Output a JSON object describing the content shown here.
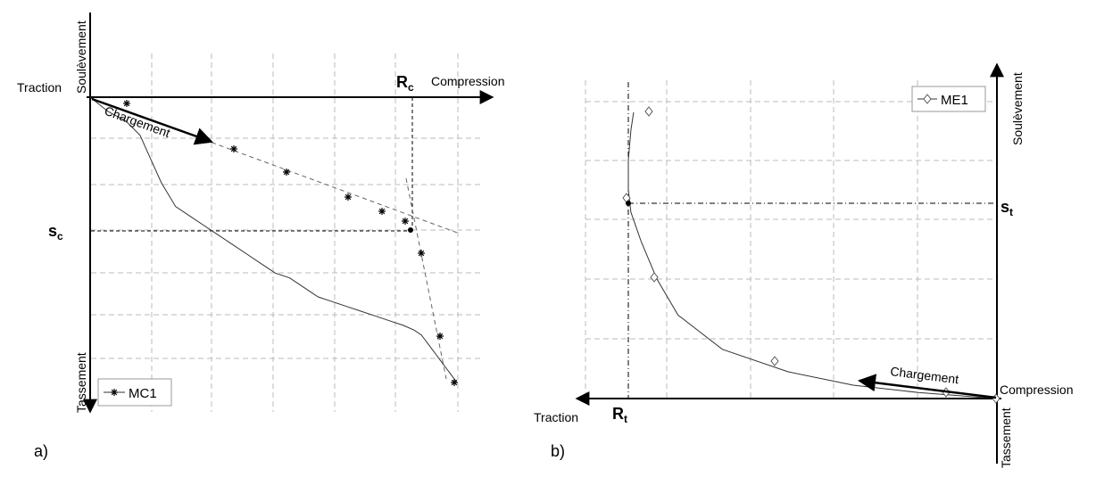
{
  "chart_data": [
    {
      "panel_label": "a)",
      "type": "line",
      "axes": {
        "left": "Traction",
        "right": "Compression",
        "up": "Soulèvement",
        "down": "Tassement"
      },
      "legend": {
        "name": "MC1",
        "marker": "star"
      },
      "marker_label": "R",
      "marker_label_sub": "c",
      "settlement_label": "s",
      "settlement_label_sub": "c",
      "arrow_label": "Chargement",
      "grid": true,
      "series": [
        {
          "name": "MC1",
          "x": [
            0,
            5,
            10,
            14,
            17,
            20,
            24,
            28,
            32,
            36,
            40,
            44,
            48,
            52,
            56,
            60,
            64,
            68,
            72,
            76,
            80,
            84,
            88,
            91,
            93,
            94,
            95,
            96,
            97,
            98,
            99,
            100,
            101,
            102,
            103
          ],
          "y": [
            0,
            3,
            5,
            8,
            13,
            18,
            23,
            25,
            27,
            29,
            31,
            33,
            35,
            37,
            38,
            40,
            42,
            43,
            44,
            45,
            46,
            47,
            48,
            49,
            50,
            51,
            52,
            53,
            54,
            55,
            56,
            57,
            58,
            59,
            60
          ]
        }
      ]
    },
    {
      "panel_label": "b)",
      "type": "line",
      "axes": {
        "left": "Traction",
        "right": "Compression",
        "up": "Soulèvement",
        "down": "Tassement"
      },
      "legend": {
        "name": "ME1",
        "marker": "diamond"
      },
      "marker_label": "R",
      "marker_label_sub": "t",
      "settlement_label": "s",
      "settlement_label_sub": "t",
      "arrow_label": "Chargement",
      "grid": true,
      "series": [
        {
          "name": "ME1",
          "x": [
            0,
            -8,
            -30,
            -55,
            -80,
            -105,
            -122,
            -130,
            -136,
            -140,
            -141,
            -141,
            -140,
            -139
          ],
          "y": [
            0,
            1,
            4,
            9,
            18,
            33,
            56,
            80,
            105,
            125,
            140,
            160,
            180,
            192
          ]
        }
      ]
    }
  ]
}
